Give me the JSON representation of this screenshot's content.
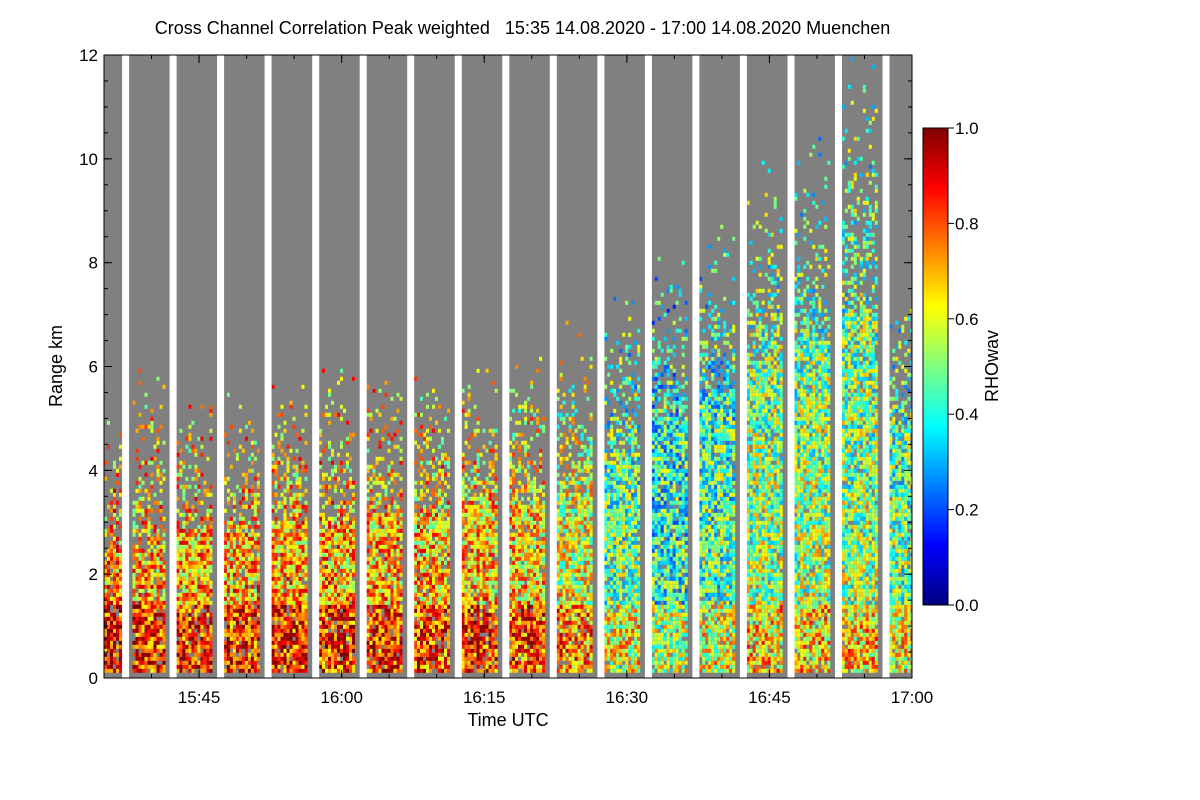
{
  "chart_data": {
    "type": "heatmap",
    "title": "Cross Channel Correlation Peak weighted   15:35 14.08.2020 - 17:00 14.08.2020 Muenchen",
    "xlabel": "Time UTC",
    "ylabel": "Range km",
    "x_ticks": [
      "15:45",
      "16:00",
      "16:15",
      "16:30",
      "16:45",
      "17:00"
    ],
    "y_ticks": [
      "0",
      "2",
      "4",
      "6",
      "8",
      "10",
      "12"
    ],
    "xlim": [
      "15:35",
      "17:00"
    ],
    "ylim": [
      0,
      12
    ],
    "colorbar": {
      "label": "RHOwav",
      "ticks": [
        "0.0",
        "0.2",
        "0.4",
        "0.6",
        "0.8",
        "1.0"
      ],
      "range": [
        0,
        1
      ],
      "colormap": "jet"
    },
    "background_color": "#808080",
    "gap_color": "#ffffff",
    "gap_start_times_utc": [
      "15:37",
      "15:42",
      "15:47",
      "15:52",
      "15:57",
      "16:02",
      "16:07",
      "16:12",
      "16:17",
      "16:22",
      "16:27",
      "16:32",
      "16:37",
      "16:42",
      "16:47",
      "16:52",
      "16:57"
    ],
    "scan_segments": [
      {
        "start": "15:35.0",
        "end": "15:36.9",
        "signal_top_km": 5.0,
        "median_rho": 0.75,
        "dense_top_km": 2.5
      },
      {
        "start": "15:38.0",
        "end": "15:41.3",
        "signal_top_km": 6.0,
        "median_rho": 0.72,
        "dense_top_km": 2.5
      },
      {
        "start": "15:42.3",
        "end": "15:46.3",
        "signal_top_km": 5.5,
        "median_rho": 0.72,
        "dense_top_km": 2.8
      },
      {
        "start": "15:47.3",
        "end": "15:51.3",
        "signal_top_km": 5.5,
        "median_rho": 0.72,
        "dense_top_km": 2.8
      },
      {
        "start": "15:52.3",
        "end": "15:56.3",
        "signal_top_km": 6.0,
        "median_rho": 0.72,
        "dense_top_km": 3.0
      },
      {
        "start": "15:57.3",
        "end": "16:01.3",
        "signal_top_km": 6.0,
        "median_rho": 0.72,
        "dense_top_km": 3.0
      },
      {
        "start": "16:02.3",
        "end": "16:06.3",
        "signal_top_km": 6.0,
        "median_rho": 0.72,
        "dense_top_km": 3.2
      },
      {
        "start": "16:07.3",
        "end": "16:11.3",
        "signal_top_km": 6.0,
        "median_rho": 0.7,
        "dense_top_km": 3.2
      },
      {
        "start": "16:12.3",
        "end": "16:16.3",
        "signal_top_km": 6.0,
        "median_rho": 0.7,
        "dense_top_km": 3.4
      },
      {
        "start": "16:17.3",
        "end": "16:21.3",
        "signal_top_km": 6.5,
        "median_rho": 0.68,
        "dense_top_km": 3.4
      },
      {
        "start": "16:22.3",
        "end": "16:26.3",
        "signal_top_km": 7.0,
        "median_rho": 0.62,
        "dense_top_km": 3.6
      },
      {
        "start": "16:27.3",
        "end": "16:31.3",
        "signal_top_km": 7.5,
        "median_rho": 0.5,
        "dense_top_km": 4.2
      },
      {
        "start": "16:32.3",
        "end": "16:36.3",
        "signal_top_km": 8.5,
        "median_rho": 0.44,
        "dense_top_km": 5.0
      },
      {
        "start": "16:37.3",
        "end": "16:41.3",
        "signal_top_km": 9.0,
        "median_rho": 0.48,
        "dense_top_km": 5.5
      },
      {
        "start": "16:42.3",
        "end": "16:46.3",
        "signal_top_km": 10.0,
        "median_rho": 0.55,
        "dense_top_km": 6.0
      },
      {
        "start": "16:47.3",
        "end": "16:51.3",
        "signal_top_km": 10.5,
        "median_rho": 0.55,
        "dense_top_km": 6.5
      },
      {
        "start": "16:52.3",
        "end": "16:56.3",
        "signal_top_km": 12.0,
        "median_rho": 0.55,
        "dense_top_km": 7.0
      },
      {
        "start": "16:57.3",
        "end": "17:00.0",
        "signal_top_km": 7.5,
        "median_rho": 0.5,
        "dense_top_km": 5.0
      }
    ]
  }
}
